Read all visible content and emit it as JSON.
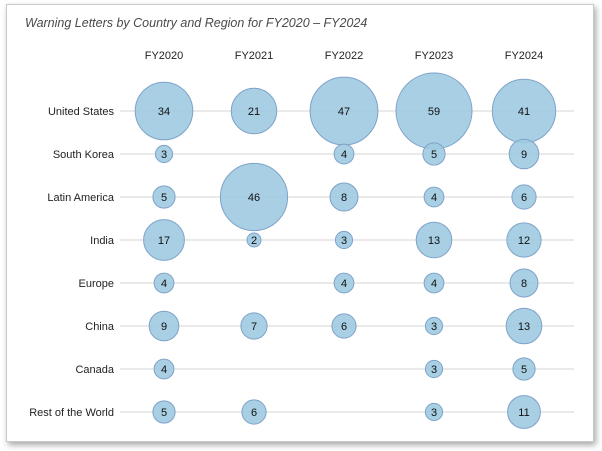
{
  "chart_data": {
    "type": "bubble-matrix",
    "title": "Warning Letters by Country and Region for FY2020 – FY2024",
    "columns": [
      "FY2020",
      "FY2021",
      "FY2022",
      "FY2023",
      "FY2024"
    ],
    "rows": [
      "United States",
      "South Korea",
      "Latin America",
      "India",
      "Europe",
      "China",
      "Canada",
      "Rest of the World"
    ],
    "values": [
      [
        34,
        21,
        47,
        59,
        41
      ],
      [
        3,
        null,
        4,
        5,
        9
      ],
      [
        5,
        46,
        8,
        4,
        6
      ],
      [
        17,
        2,
        3,
        13,
        12
      ],
      [
        4,
        null,
        4,
        4,
        8
      ],
      [
        9,
        7,
        6,
        3,
        13
      ],
      [
        4,
        null,
        null,
        3,
        5
      ],
      [
        5,
        6,
        null,
        3,
        11
      ]
    ],
    "bubble_color": "#9ecae1",
    "bubble_stroke": "#7fa3c9",
    "grid": true
  }
}
